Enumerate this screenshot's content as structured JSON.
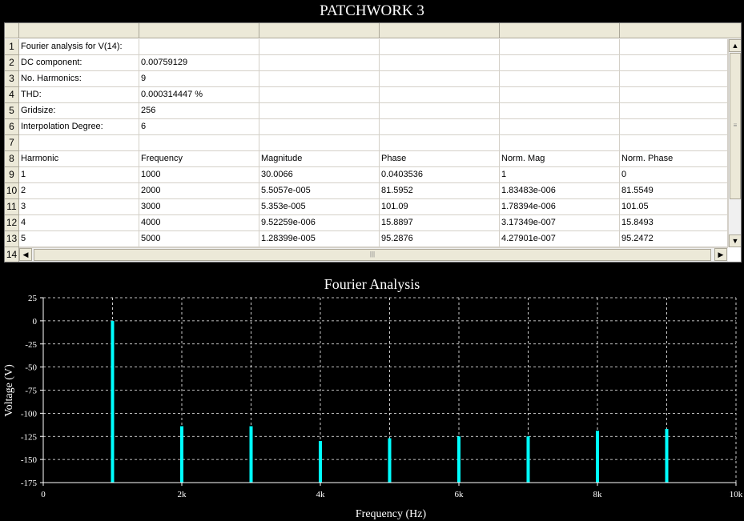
{
  "window_title": "PATCHWORK 3",
  "spreadsheet": {
    "row_numbers": [
      "1",
      "2",
      "3",
      "4",
      "5",
      "6",
      "7",
      "8",
      "9",
      "10",
      "11",
      "12",
      "13",
      "14"
    ],
    "rows": [
      [
        "Fourier analysis for V(14):",
        "",
        "",
        "",
        "",
        ""
      ],
      [
        "DC component:",
        "0.00759129",
        "",
        "",
        "",
        ""
      ],
      [
        "No. Harmonics:",
        "9",
        "",
        "",
        "",
        ""
      ],
      [
        "THD:",
        "0.000314447 %",
        "",
        "",
        "",
        ""
      ],
      [
        "Gridsize:",
        "256",
        "",
        "",
        "",
        ""
      ],
      [
        "Interpolation Degree:",
        "6",
        "",
        "",
        "",
        ""
      ],
      [
        "",
        "",
        "",
        "",
        "",
        ""
      ],
      [
        "Harmonic",
        "Frequency",
        "Magnitude",
        "Phase",
        "Norm. Mag",
        "Norm. Phase"
      ],
      [
        "1",
        "1000",
        "30.0066",
        "0.0403536",
        "1",
        "0"
      ],
      [
        "2",
        "2000",
        "5.5057e-005",
        "81.5952",
        "1.83483e-006",
        "81.5549"
      ],
      [
        "3",
        "3000",
        "5.353e-005",
        "101.09",
        "1.78394e-006",
        "101.05"
      ],
      [
        "4",
        "4000",
        "9.52259e-006",
        "15.8897",
        "3.17349e-007",
        "15.8493"
      ],
      [
        "5",
        "5000",
        "1.28399e-005",
        "95.2876",
        "4.27901e-007",
        "95.2472"
      ],
      [
        "",
        "",
        "",
        "",
        "",
        ""
      ]
    ]
  },
  "chart_data": {
    "type": "bar",
    "title": "Fourier Analysis",
    "xlabel": "Frequency (Hz)",
    "ylabel": "Voltage (V)",
    "xlim": [
      0,
      10000
    ],
    "ylim": [
      -175,
      25
    ],
    "x_ticks": [
      0,
      2000,
      4000,
      6000,
      8000,
      10000
    ],
    "x_tick_labels": [
      "0",
      "2k",
      "4k",
      "6k",
      "8k",
      "10k"
    ],
    "y_ticks": [
      25,
      0,
      -25,
      -50,
      -75,
      -100,
      -125,
      -150,
      -175
    ],
    "y_tick_labels": [
      "25",
      "0",
      "-25",
      "-50",
      "-75",
      "-100",
      "-125",
      "-150",
      "-175"
    ],
    "grid": true,
    "bar_color": "#00ffff",
    "baseline": -175,
    "x": [
      1000,
      2000,
      3000,
      4000,
      5000,
      6000,
      7000,
      8000,
      9000
    ],
    "values": [
      0,
      -114,
      -114,
      -130,
      -127,
      -125,
      -125,
      -119,
      -117
    ]
  }
}
